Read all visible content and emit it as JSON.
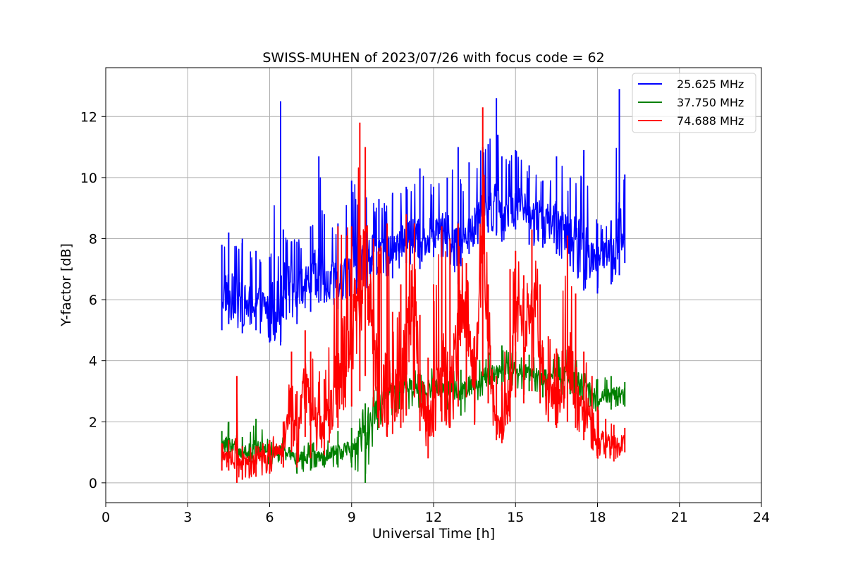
{
  "chart_data": {
    "type": "line",
    "title": "SWISS-MUHEN of 2023/07/26 with focus code = 62",
    "xlabel": "Universal Time [h]",
    "ylabel": "Y-factor [dB]",
    "xlim": [
      0,
      24
    ],
    "ylim": [
      -0.65,
      13.6
    ],
    "xticks": [
      0,
      3,
      6,
      9,
      12,
      15,
      18,
      21,
      24
    ],
    "yticks": [
      0,
      2,
      4,
      6,
      8,
      10,
      12
    ],
    "grid": true,
    "legend_position": "top-right",
    "series": [
      {
        "name": "25.625 MHz",
        "color": "#0000ff",
        "x": [
          4.25,
          4.5,
          5.0,
          5.5,
          6.0,
          6.4,
          6.5,
          7.0,
          7.5,
          7.8,
          8.0,
          8.5,
          9.0,
          9.5,
          10.0,
          10.5,
          11.0,
          11.5,
          12.0,
          12.5,
          12.9,
          13.0,
          13.3,
          13.8,
          14.0,
          14.3,
          14.5,
          15.0,
          15.5,
          16.0,
          16.5,
          17.0,
          17.5,
          18.0,
          18.5,
          18.8,
          19.0
        ],
        "y": [
          6.1,
          6.3,
          5.8,
          5.9,
          5.7,
          6.2,
          6.6,
          6.3,
          6.6,
          6.9,
          6.8,
          6.5,
          7.0,
          7.2,
          7.7,
          7.6,
          8.1,
          7.9,
          8.2,
          8.3,
          7.6,
          8.0,
          8.4,
          8.9,
          9.1,
          9.0,
          8.8,
          9.2,
          8.8,
          8.7,
          8.5,
          8.1,
          7.6,
          7.4,
          7.6,
          8.0,
          8.3
        ],
        "y_min": [
          5.0,
          5.2,
          4.9,
          5.0,
          4.6,
          4.5,
          5.4,
          5.2,
          5.6,
          5.9,
          5.9,
          5.7,
          6.1,
          6.3,
          6.8,
          6.7,
          7.2,
          7.0,
          7.4,
          7.4,
          6.5,
          7.1,
          7.5,
          8.0,
          8.2,
          8.1,
          7.9,
          8.3,
          7.8,
          7.7,
          7.5,
          7.1,
          6.3,
          6.2,
          6.5,
          6.8,
          7.2
        ],
        "y_max": [
          7.8,
          8.2,
          8.0,
          7.6,
          7.4,
          12.5,
          8.3,
          7.9,
          8.4,
          10.7,
          8.8,
          8.5,
          9.9,
          9.6,
          9.3,
          9.5,
          9.7,
          10.3,
          9.7,
          10.0,
          11.0,
          9.8,
          10.5,
          11.0,
          11.1,
          12.6,
          10.7,
          10.9,
          10.4,
          9.9,
          10.7,
          10.0,
          10.9,
          8.5,
          8.6,
          12.9,
          10.1
        ]
      },
      {
        "name": "37.750 MHz",
        "color": "#008000",
        "x": [
          4.25,
          4.5,
          5.0,
          5.5,
          6.0,
          6.5,
          7.0,
          7.5,
          8.0,
          8.5,
          9.0,
          9.5,
          10.0,
          10.5,
          11.0,
          11.5,
          12.0,
          12.5,
          13.0,
          13.5,
          14.0,
          14.5,
          15.0,
          15.5,
          16.0,
          16.5,
          17.0,
          17.5,
          18.0,
          18.5,
          19.0
        ],
        "y": [
          1.2,
          1.3,
          1.0,
          1.1,
          1.0,
          1.1,
          0.8,
          0.8,
          0.9,
          1.0,
          1.1,
          1.5,
          2.6,
          3.0,
          3.2,
          3.0,
          3.1,
          3.1,
          3.0,
          3.3,
          3.5,
          3.6,
          3.7,
          3.6,
          3.4,
          3.5,
          3.5,
          3.3,
          2.8,
          2.9,
          3.0
        ],
        "y_min": [
          0.7,
          0.8,
          0.5,
          0.7,
          0.6,
          0.7,
          0.3,
          0.4,
          0.5,
          0.5,
          0.5,
          0.0,
          1.8,
          2.2,
          2.4,
          2.3,
          2.4,
          2.4,
          2.2,
          2.6,
          2.9,
          3.0,
          3.1,
          3.0,
          2.8,
          2.9,
          2.9,
          2.6,
          2.3,
          2.4,
          2.5
        ],
        "y_max": [
          1.7,
          2.0,
          1.5,
          2.1,
          1.4,
          1.5,
          1.3,
          1.4,
          1.4,
          1.7,
          1.8,
          2.6,
          3.3,
          3.6,
          4.0,
          3.7,
          3.8,
          3.8,
          3.7,
          4.1,
          4.3,
          4.5,
          4.3,
          4.2,
          4.1,
          4.3,
          4.4,
          3.6,
          3.4,
          3.5,
          3.3
        ]
      },
      {
        "name": "74.688 MHz",
        "color": "#ff0000",
        "x": [
          4.25,
          4.5,
          4.8,
          5.0,
          5.5,
          6.0,
          6.5,
          6.8,
          7.0,
          7.3,
          7.5,
          8.0,
          8.5,
          9.0,
          9.3,
          9.5,
          9.8,
          10.0,
          10.3,
          10.5,
          10.8,
          11.0,
          11.3,
          11.5,
          11.8,
          12.0,
          12.3,
          12.6,
          12.9,
          13.2,
          13.5,
          13.8,
          14.0,
          14.3,
          14.5,
          14.8,
          15.0,
          15.3,
          15.6,
          15.9,
          16.2,
          16.5,
          16.9,
          17.2,
          17.5,
          17.8,
          18.0,
          18.3,
          18.6,
          19.0
        ],
        "y": [
          0.8,
          0.9,
          0.8,
          0.7,
          0.8,
          0.9,
          1.1,
          2.7,
          1.5,
          3.3,
          2.3,
          1.8,
          3.6,
          4.8,
          6.0,
          7.5,
          5.0,
          3.2,
          2.9,
          2.7,
          3.3,
          4.6,
          6.3,
          3.1,
          2.3,
          2.5,
          3.8,
          2.7,
          5.2,
          5.4,
          3.1,
          8.7,
          4.4,
          2.0,
          1.8,
          3.4,
          5.5,
          4.9,
          6.4,
          4.5,
          3.0,
          2.7,
          4.1,
          3.4,
          2.6,
          2.0,
          1.5,
          1.4,
          1.3,
          1.4
        ],
        "y_min": [
          0.4,
          0.4,
          0.0,
          0.1,
          0.2,
          0.3,
          0.5,
          1.0,
          0.5,
          1.5,
          0.8,
          0.9,
          1.8,
          2.5,
          3.0,
          3.5,
          2.5,
          1.8,
          1.5,
          1.6,
          1.8,
          2.2,
          2.8,
          1.7,
          0.8,
          1.5,
          2.0,
          1.8,
          2.5,
          2.8,
          1.9,
          3.5,
          2.6,
          1.4,
          1.3,
          2.0,
          2.8,
          2.6,
          3.0,
          2.6,
          2.0,
          1.8,
          2.0,
          1.8,
          1.4,
          1.1,
          0.8,
          0.8,
          0.7,
          1.0
        ],
        "y_max": [
          1.3,
          1.4,
          3.5,
          1.2,
          1.2,
          1.4,
          2.0,
          4.3,
          3.0,
          5.0,
          4.3,
          3.4,
          8.4,
          8.4,
          11.8,
          11.0,
          8.0,
          7.7,
          8.5,
          5.6,
          6.5,
          8.8,
          8.5,
          5.5,
          4.1,
          6.5,
          8.4,
          8.0,
          8.5,
          7.2,
          4.8,
          12.3,
          6.5,
          3.5,
          3.2,
          7.0,
          7.6,
          6.8,
          8.3,
          6.5,
          4.8,
          4.4,
          8.1,
          6.2,
          4.3,
          3.5,
          2.5,
          2.1,
          1.9,
          1.8
        ]
      }
    ]
  }
}
